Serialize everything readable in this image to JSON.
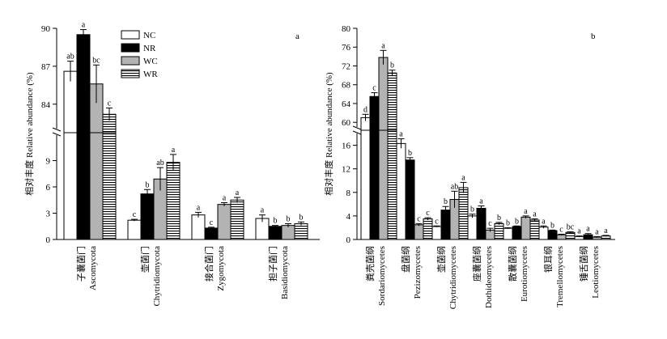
{
  "chart_data": [
    {
      "panel": "a",
      "type": "bar",
      "ylabel": "相对丰度 Relative abundance (%)",
      "legend": {
        "position": "top-center",
        "entries": [
          "NC",
          "NR",
          "WC",
          "WR"
        ]
      },
      "y_axis": {
        "broken": true,
        "lower_range": [
          0,
          12
        ],
        "lower_ticks": [
          "0",
          "3",
          "6",
          "9"
        ],
        "upper_range": [
          82,
          90
        ],
        "upper_ticks": [
          "84",
          "87",
          "90"
        ]
      },
      "categories": [
        {
          "zh": "子囊菌门",
          "en": "Ascomycota"
        },
        {
          "zh": "壶菌门",
          "en": "Chytridiomycota"
        },
        {
          "zh": "接合菌门",
          "en": "Zygomycota"
        },
        {
          "zh": "担子菌门",
          "en": "Basidiomycota"
        }
      ],
      "series": [
        {
          "name": "NC",
          "pattern": "white",
          "values": [
            86.6,
            2.2,
            2.8,
            2.4
          ],
          "errors": [
            0.8,
            0.1,
            0.3,
            0.4
          ],
          "letters": [
            "ab",
            "c",
            "a",
            "a"
          ]
        },
        {
          "name": "NR",
          "pattern": "black",
          "values": [
            89.5,
            5.2,
            1.3,
            1.5
          ],
          "errors": [
            0.4,
            0.5,
            0.1,
            0.1
          ],
          "letters": [
            "a",
            "b",
            "c",
            "b"
          ]
        },
        {
          "name": "WC",
          "pattern": "gray",
          "values": [
            85.6,
            6.9,
            4.0,
            1.6
          ],
          "errors": [
            1.5,
            1.3,
            0.2,
            0.2
          ],
          "letters": [
            "bc",
            "ab",
            "a",
            "b"
          ]
        },
        {
          "name": "WR",
          "pattern": "horizontal",
          "values": [
            83.2,
            8.8,
            4.5,
            1.8
          ],
          "errors": [
            0.5,
            0.9,
            0.3,
            0.2
          ],
          "letters": [
            "c",
            "a",
            "a",
            "b"
          ]
        }
      ]
    },
    {
      "panel": "b",
      "type": "bar",
      "ylabel": "相对丰度 Relative abundance (%)",
      "y_axis": {
        "broken": true,
        "lower_range": [
          0,
          18
        ],
        "lower_ticks": [
          "0",
          "4",
          "8",
          "12",
          "16"
        ],
        "upper_range": [
          59,
          80
        ],
        "upper_ticks": [
          "60",
          "64",
          "68",
          "72",
          "76",
          "80"
        ]
      },
      "categories": [
        {
          "zh": "粪壳菌纲",
          "en": "Sordariomycetes"
        },
        {
          "zh": "盘菌纲",
          "en": "Pezizomycetes"
        },
        {
          "zh": "壶菌纲",
          "en": "Chytridiomycetes"
        },
        {
          "zh": "座囊菌纲",
          "en": "Dothideomycetes"
        },
        {
          "zh": "散囊菌纲",
          "en": "Eurotiomycetes"
        },
        {
          "zh": "银耳纲",
          "en": "Tremellomycetes"
        },
        {
          "zh": "锤舌菌纲",
          "en": "Leotiomycetes"
        }
      ],
      "series": [
        {
          "name": "NC",
          "pattern": "white",
          "values": [
            61.0,
            16.3,
            2.2,
            4.0,
            1.9,
            2.1,
            0.5
          ],
          "errors": [
            0.7,
            0.8,
            0.1,
            0.3,
            0.1,
            0.2,
            0.1
          ],
          "letters": [
            "d",
            "a",
            "c",
            "b",
            "b",
            "a",
            "a"
          ]
        },
        {
          "name": "NR",
          "pattern": "black",
          "values": [
            65.5,
            13.5,
            5.0,
            5.3,
            2.2,
            1.5,
            0.8
          ],
          "errors": [
            0.8,
            0.4,
            0.6,
            0.4,
            0.1,
            0.1,
            0.2
          ],
          "letters": [
            "c",
            "b",
            "b",
            "a",
            "b",
            "b",
            "a"
          ]
        },
        {
          "name": "WC",
          "pattern": "gray",
          "values": [
            73.8,
            2.5,
            6.8,
            1.6,
            3.8,
            0.8,
            0.4
          ],
          "errors": [
            1.5,
            0.2,
            1.4,
            0.3,
            0.2,
            0.1,
            0.1
          ],
          "letters": [
            "a",
            "c",
            "ab",
            "c",
            "a",
            "c",
            "a"
          ]
        },
        {
          "name": "WR",
          "pattern": "horizontal",
          "values": [
            70.5,
            3.5,
            8.8,
            2.7,
            3.3,
            1.2,
            0.6
          ],
          "errors": [
            0.6,
            0.2,
            0.9,
            0.2,
            0.2,
            0.1,
            0.1
          ],
          "letters": [
            "b",
            "c",
            "a",
            "b",
            "a",
            "bc",
            "a"
          ]
        }
      ]
    }
  ]
}
